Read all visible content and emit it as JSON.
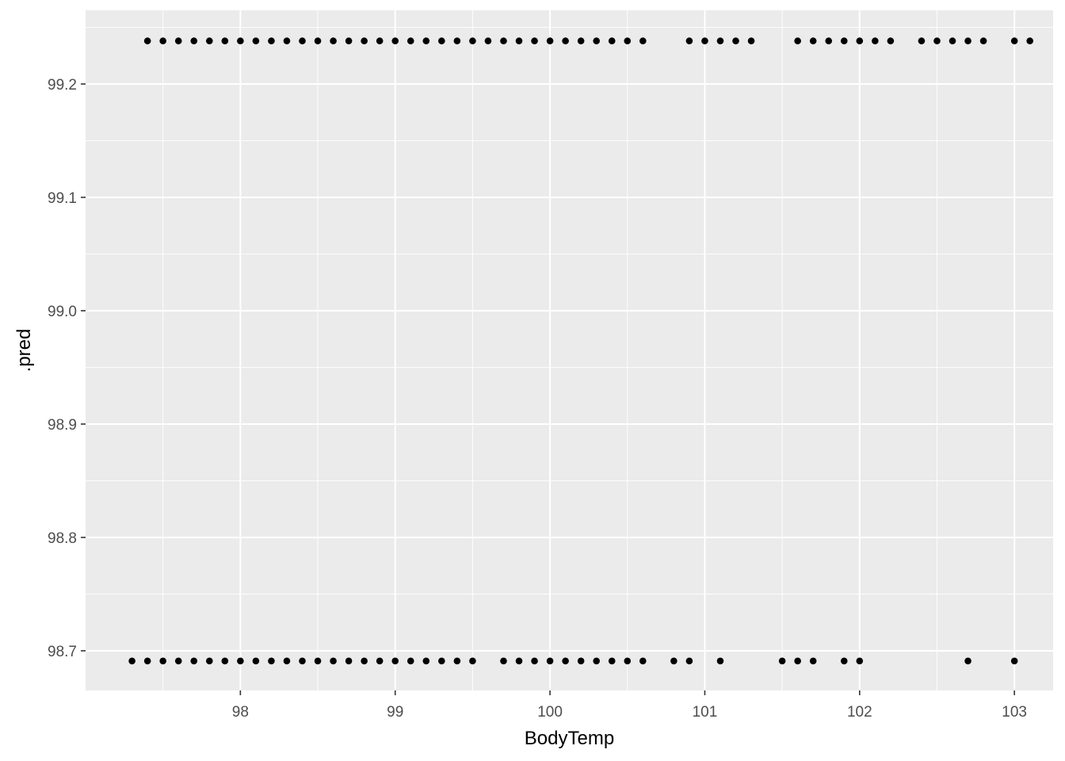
{
  "chart_data": {
    "type": "scatter",
    "title": "",
    "xlabel": "BodyTemp",
    "ylabel": ".pred",
    "xlim": [
      97.0,
      103.25
    ],
    "ylim": [
      98.665,
      99.265
    ],
    "x_ticks": [
      98,
      99,
      100,
      101,
      102,
      103
    ],
    "y_ticks": [
      98.7,
      98.8,
      98.9,
      99.0,
      99.1,
      99.2
    ],
    "x_tick_labels": [
      "98",
      "99",
      "100",
      "101",
      "102",
      "103"
    ],
    "y_tick_labels": [
      "98.7",
      "98.8",
      "98.9",
      "99.0",
      "99.1",
      "99.2"
    ],
    "grid": true,
    "legend": "none",
    "colors": {
      "panel": "#ebebeb",
      "grid_major": "#ffffff",
      "point": "#000000",
      "tick_text": "#4d4d4d",
      "title_text": "#000000"
    },
    "series": [
      {
        "y": 99.238,
        "x": [
          97.4,
          97.5,
          97.6,
          97.7,
          97.8,
          97.9,
          98.0,
          98.1,
          98.2,
          98.3,
          98.4,
          98.5,
          98.6,
          98.7,
          98.8,
          98.9,
          99.0,
          99.1,
          99.2,
          99.3,
          99.4,
          99.5,
          99.6,
          99.7,
          99.8,
          99.9,
          100.0,
          100.1,
          100.2,
          100.3,
          100.4,
          100.5,
          100.6,
          100.9,
          101.0,
          101.1,
          101.2,
          101.3,
          101.6,
          101.7,
          101.8,
          101.9,
          102.0,
          102.1,
          102.2,
          102.4,
          102.5,
          102.6,
          102.7,
          102.8,
          103.0,
          103.1
        ]
      },
      {
        "y": 98.691,
        "x": [
          97.3,
          97.4,
          97.5,
          97.6,
          97.7,
          97.8,
          97.9,
          98.0,
          98.1,
          98.2,
          98.3,
          98.4,
          98.5,
          98.6,
          98.7,
          98.8,
          98.9,
          99.0,
          99.1,
          99.2,
          99.3,
          99.4,
          99.5,
          99.7,
          99.8,
          99.9,
          100.0,
          100.1,
          100.2,
          100.3,
          100.4,
          100.5,
          100.6,
          100.8,
          100.9,
          101.1,
          101.5,
          101.6,
          101.7,
          101.9,
          102.0,
          102.7,
          103.0
        ]
      }
    ]
  }
}
